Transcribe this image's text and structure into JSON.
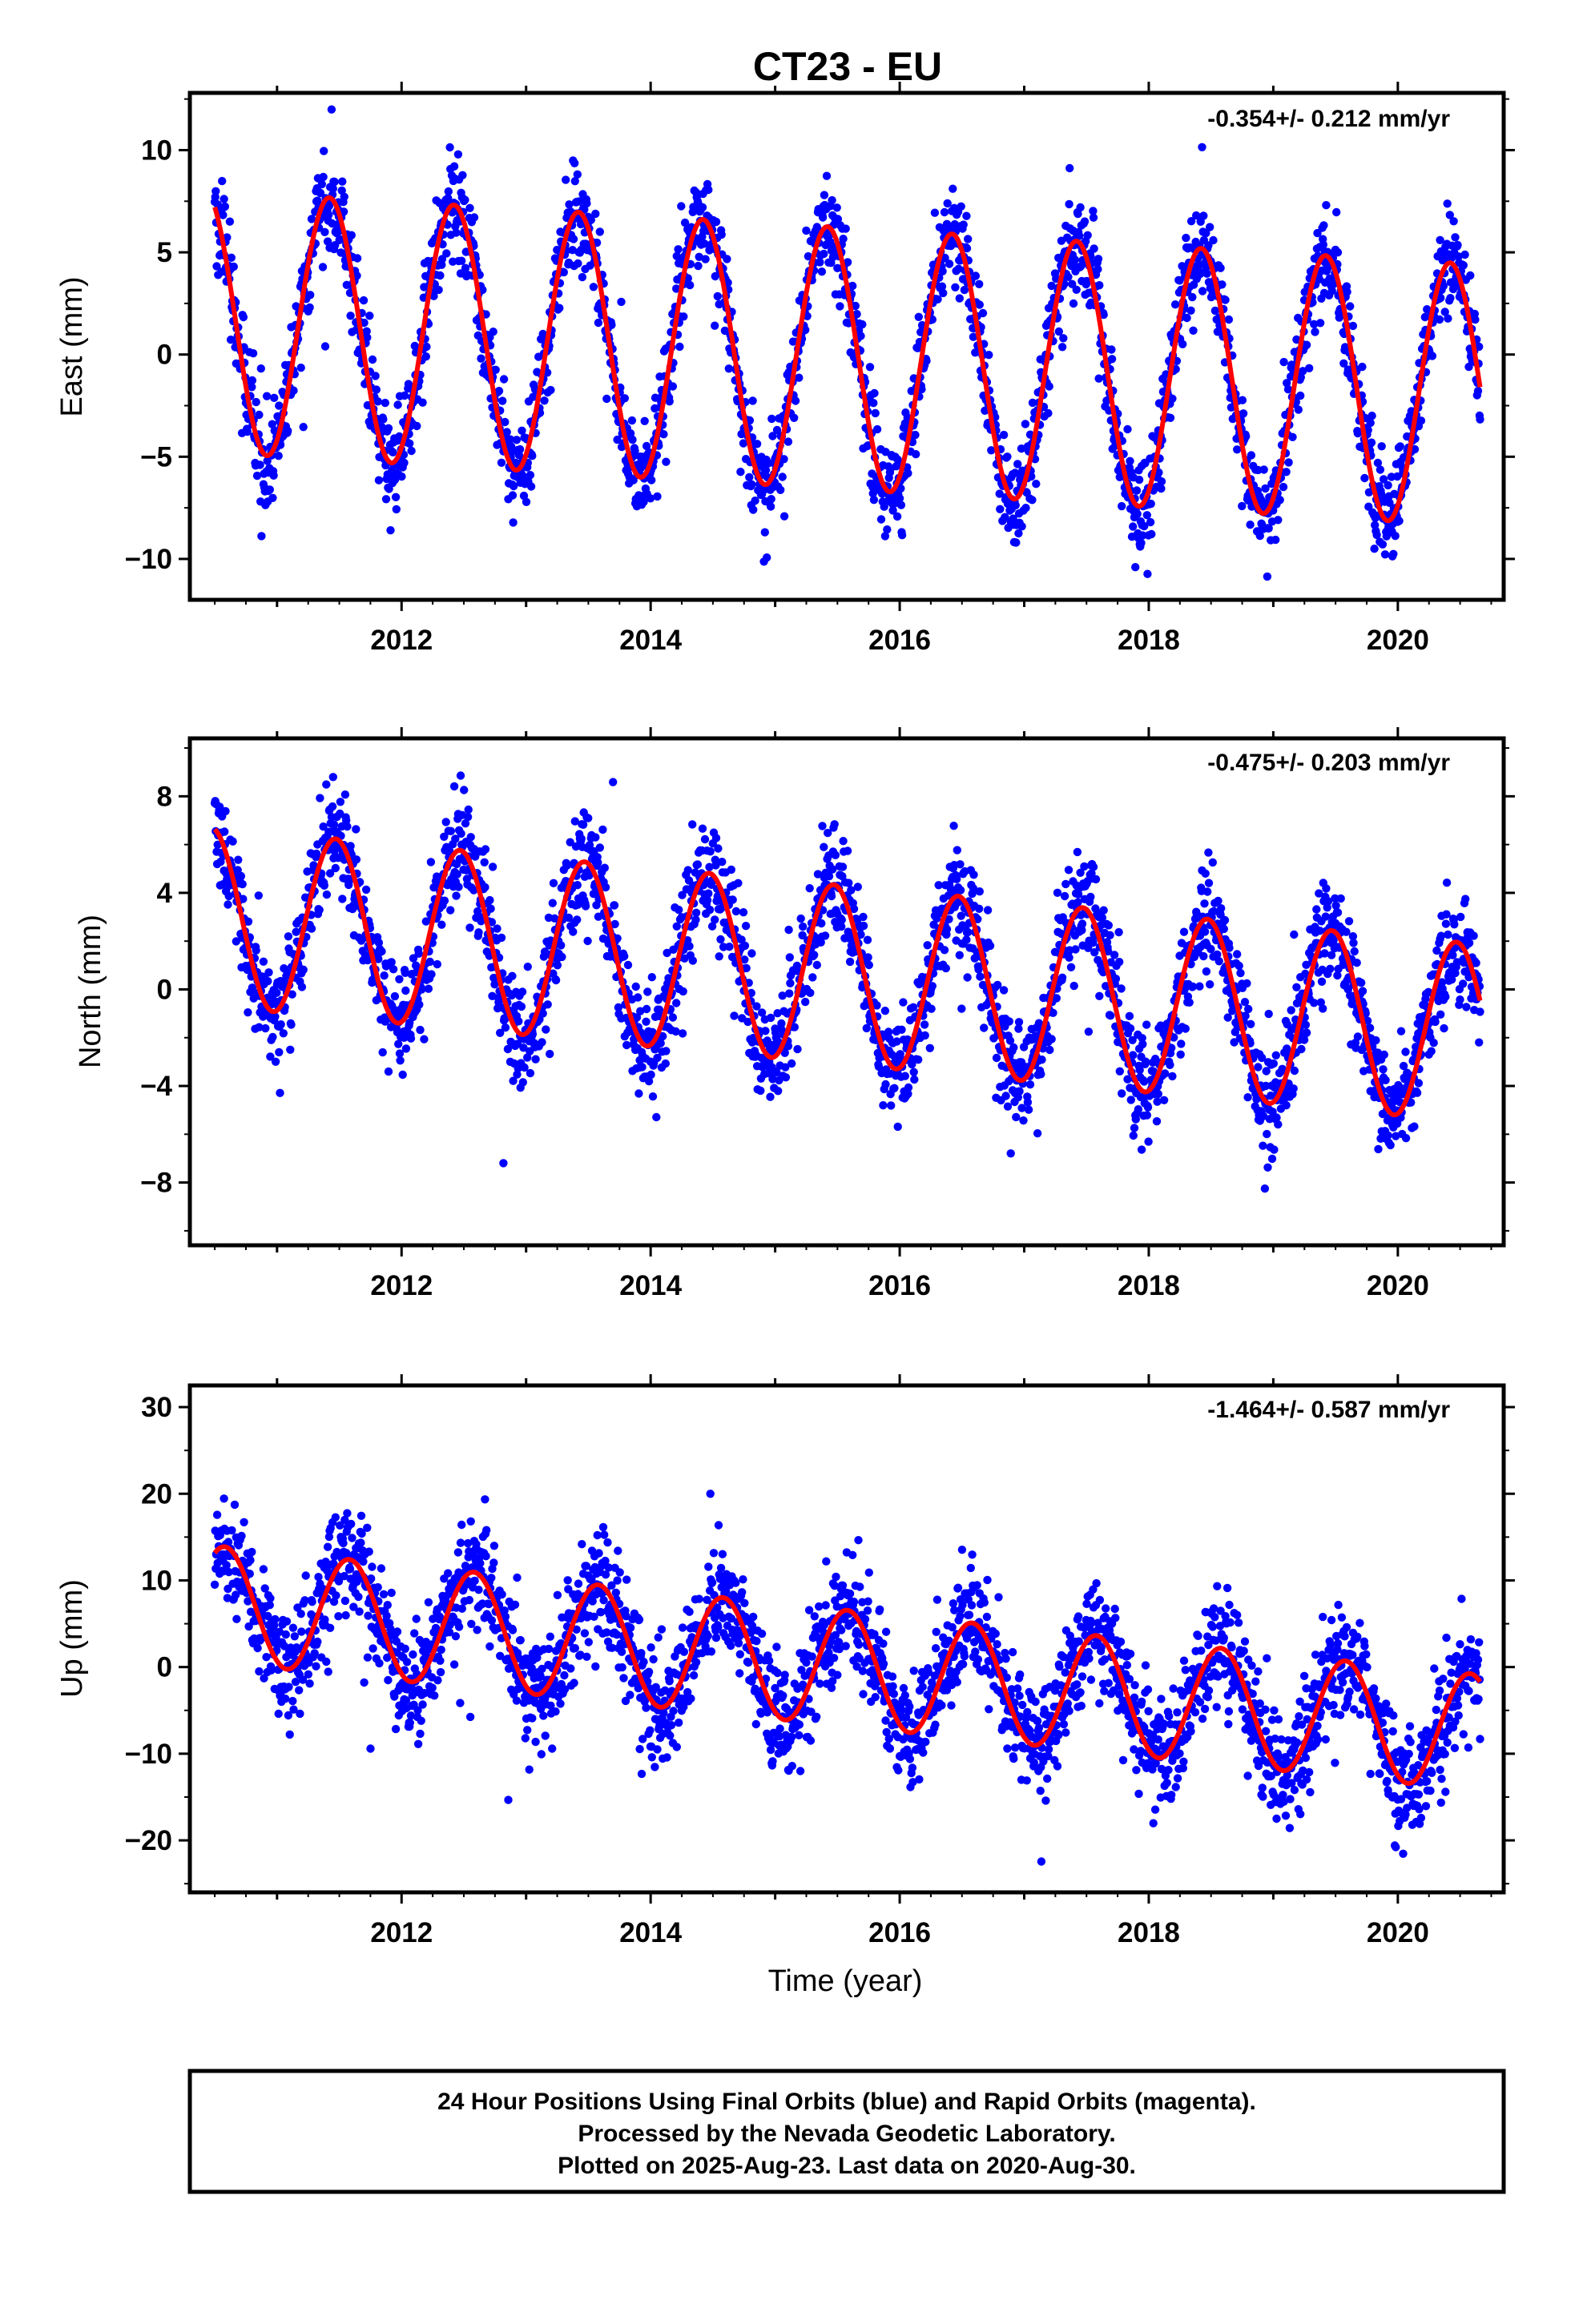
{
  "title": "CT23 - EU",
  "xlabel": "Time (year)",
  "footer": {
    "line1": "24 Hour Positions Using Final Orbits (blue) and Rapid Orbits (magenta).",
    "line2": "Processed by the Nevada Geodetic Laboratory.",
    "line3": "Plotted on 2025-Aug-23. Last data on 2020-Aug-30."
  },
  "colors": {
    "points": "#0000ff",
    "fit": "#ff0000",
    "frame": "#000000"
  },
  "chart_data": [
    {
      "type": "scatter",
      "panel": "east",
      "ylabel": "East (mm)",
      "rate_text": "-0.354+/- 0.212 mm/yr",
      "xlim": [
        2010.3,
        2020.85
      ],
      "ylim": [
        -12.0,
        12.8
      ],
      "x_ticks": [
        2012,
        2014,
        2016,
        2018,
        2020
      ],
      "y_ticks": [
        -10,
        -5,
        0,
        5,
        10
      ],
      "y_tick_labels": [
        "−10",
        "−5",
        "0",
        "5",
        "10"
      ],
      "data_range": [
        2010.5,
        2020.66
      ],
      "seasonal_fit": {
        "offset": 1.6,
        "trend_mm_per_yr": -0.354,
        "amplitude": 6.4,
        "peak_phase": 0.42,
        "ref_year": 2010.5
      },
      "series": [
        {
          "name": "Final Orbits (blue)",
          "kind": "points",
          "scatter_sd": 1.2,
          "n_points": 2600
        },
        {
          "name": "fit",
          "kind": "line"
        }
      ]
    },
    {
      "type": "scatter",
      "panel": "north",
      "ylabel": "North (mm)",
      "rate_text": "-0.475+/- 0.203 mm/yr",
      "xlim": [
        2010.3,
        2020.85
      ],
      "ylim": [
        -10.6,
        10.4
      ],
      "x_ticks": [
        2012,
        2014,
        2016,
        2018,
        2020
      ],
      "y_ticks": [
        -8,
        -4,
        0,
        4,
        8
      ],
      "y_tick_labels": [
        "−8",
        "−4",
        "0",
        "4",
        "8"
      ],
      "data_range": [
        2010.5,
        2020.66
      ],
      "seasonal_fit": {
        "offset": 3.0,
        "trend_mm_per_yr": -0.475,
        "amplitude": 3.7,
        "peak_phase": 0.47,
        "ref_year": 2010.5
      },
      "series": [
        {
          "name": "Final Orbits (blue)",
          "kind": "points",
          "scatter_sd": 1.1,
          "n_points": 2600
        },
        {
          "name": "fit",
          "kind": "line"
        }
      ]
    },
    {
      "type": "scatter",
      "panel": "up",
      "ylabel": "Up (mm)",
      "rate_text": "-1.464+/- 0.587 mm/yr",
      "xlim": [
        2010.3,
        2020.85
      ],
      "ylim": [
        -26.0,
        32.5
      ],
      "x_ticks": [
        2012,
        2014,
        2016,
        2018,
        2020
      ],
      "y_ticks": [
        -20,
        -10,
        0,
        10,
        20,
        30
      ],
      "y_tick_labels": [
        "−20",
        "−10",
        "0",
        "10",
        "20",
        "30"
      ],
      "data_range": [
        2010.5,
        2020.66
      ],
      "seasonal_fit": {
        "offset": 7.3,
        "trend_mm_per_yr": -1.464,
        "amplitude": 6.7,
        "peak_phase": 0.58,
        "ref_year": 2010.5
      },
      "series": [
        {
          "name": "Final Orbits (blue)",
          "kind": "points",
          "scatter_sd": 3.2,
          "n_points": 2600
        },
        {
          "name": "fit",
          "kind": "line"
        }
      ]
    }
  ]
}
